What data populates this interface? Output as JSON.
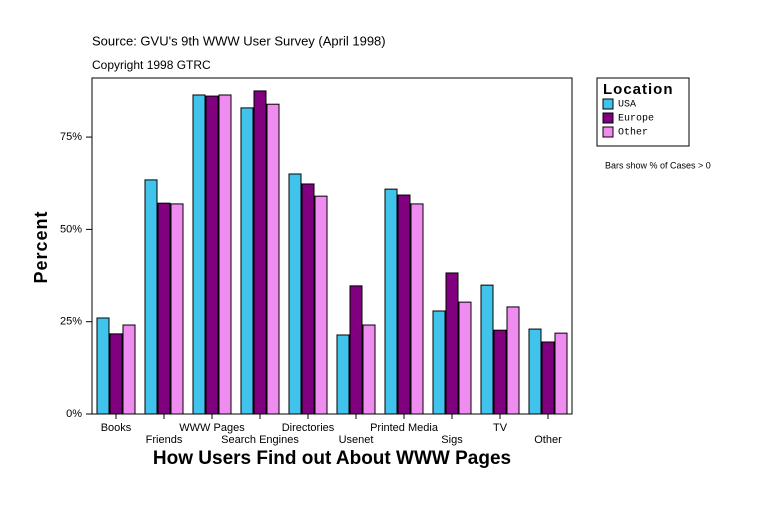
{
  "chart_data": {
    "type": "bar",
    "title": "Source: GVU's 9th WWW User Survey (April 1998)",
    "subtitle": "Copyright 1998 GTRC",
    "y_label": "Percent",
    "x_label": "How Users Find out About WWW Pages",
    "legend_title": "Location",
    "annotation": "Bars show % of Cases > 0",
    "legend": "right",
    "categories": [
      "Books",
      "Friends",
      "WWW Pages",
      "Search Engines",
      "Directories",
      "Usenet",
      "Printed Media",
      "Sigs",
      "TV",
      "Other"
    ],
    "series": [
      {
        "name": "USA",
        "color": "#40c4ec",
        "values": [
          26,
          63.4,
          86.4,
          82.9,
          65,
          21.4,
          60.9,
          27.9,
          34.9,
          23
        ]
      },
      {
        "name": "Europe",
        "color": "#800080",
        "values": [
          21.7,
          57.1,
          86.1,
          87.5,
          62.3,
          34.7,
          59.3,
          38.2,
          22.7,
          19.5
        ]
      },
      {
        "name": "Other",
        "color": "#f08cf0",
        "values": [
          24.1,
          56.9,
          86.4,
          83.9,
          59,
          24.1,
          56.9,
          30.3,
          29,
          21.9
        ]
      }
    ],
    "ylim": [
      0,
      91
    ],
    "yticks": [
      {
        "value": 0,
        "label": "0%"
      },
      {
        "value": 25,
        "label": "25%"
      },
      {
        "value": 50,
        "label": "50%"
      },
      {
        "value": 75,
        "label": "75%"
      }
    ]
  }
}
